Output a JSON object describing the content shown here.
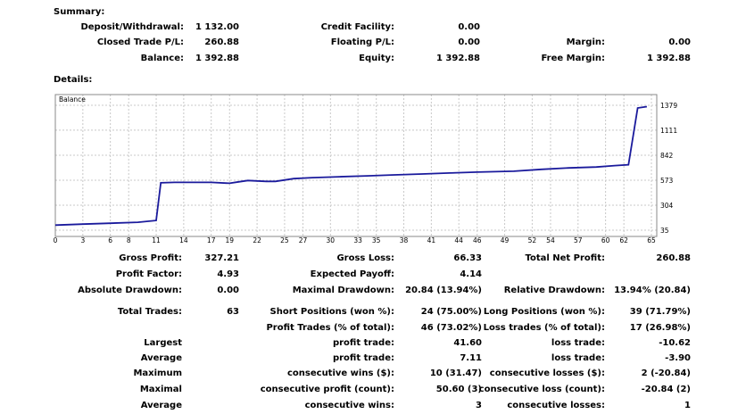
{
  "summary": {
    "title": "Summary:",
    "deposit_label": "Deposit/Withdrawal:",
    "deposit_value": "1 132.00",
    "closed_label": "Closed Trade P/L:",
    "closed_value": "260.88",
    "balance_label": "Balance:",
    "balance_value": "1 392.88",
    "credit_label": "Credit Facility:",
    "credit_value": "0.00",
    "floating_label": "Floating P/L:",
    "floating_value": "0.00",
    "equity_label": "Equity:",
    "equity_value": "1 392.88",
    "margin_label": "Margin:",
    "margin_value": "0.00",
    "free_margin_label": "Free Margin:",
    "free_margin_value": "1 392.88"
  },
  "details": {
    "title": "Details:"
  },
  "chart_data": {
    "type": "line",
    "title": "Balance",
    "xlim": [
      0,
      65
    ],
    "ylim": [
      35,
      1379
    ],
    "x_ticks": [
      "0",
      "3",
      "6",
      "8",
      "11",
      "14",
      "17",
      "19",
      "22",
      "25",
      "27",
      "30",
      "33",
      "35",
      "38",
      "41",
      "44",
      "46",
      "49",
      "52",
      "54",
      "57",
      "60",
      "62",
      "65"
    ],
    "y_ticks": [
      "1379",
      "1111",
      "842",
      "573",
      "304",
      "35"
    ],
    "grid": true,
    "series": [
      {
        "x": [
          0,
          3,
          6,
          9,
          11,
          11.5,
          13,
          17,
          19,
          20,
          21,
          23,
          24,
          26,
          28,
          31,
          34,
          37,
          40,
          43,
          46,
          50,
          53,
          56,
          59,
          61,
          62.5,
          63.5,
          64.5
        ],
        "y": [
          90,
          100,
          110,
          120,
          140,
          545,
          550,
          550,
          540,
          555,
          570,
          560,
          560,
          590,
          600,
          610,
          620,
          630,
          640,
          650,
          660,
          670,
          690,
          705,
          715,
          730,
          740,
          1350,
          1365
        ]
      }
    ]
  },
  "stats": [
    {
      "l1": "Gross Profit:",
      "v1": "327.21",
      "l2": "Gross Loss:",
      "v2": "66.33",
      "l3": "Total Net Profit:",
      "v3": "260.88"
    },
    {
      "l1": "Profit Factor:",
      "v1": "4.93",
      "l2": "Expected Payoff:",
      "v2": "4.14",
      "l3": "",
      "v3": ""
    },
    {
      "l1": "Absolute Drawdown:",
      "v1": "0.00",
      "l2": "Maximal Drawdown:",
      "v2": "20.84 (13.94%)",
      "l3": "Relative Drawdown:",
      "v3": "13.94% (20.84)"
    },
    {
      "l1": "Total Trades:",
      "v1": "63",
      "l2": "Short Positions (won %):",
      "v2": "24 (75.00%)",
      "l3": "Long Positions (won %):",
      "v3": "39 (71.79%)"
    },
    {
      "l1": "",
      "v1": "",
      "l2": "Profit Trades (% of total):",
      "v2": "46 (73.02%)",
      "l3": "Loss trades (% of total):",
      "v3": "17 (26.98%)"
    },
    {
      "l1": "Largest",
      "v1": "",
      "l2": "profit trade:",
      "v2": "41.60",
      "l3": "loss trade:",
      "v3": "-10.62"
    },
    {
      "l1": "Average",
      "v1": "",
      "l2": "profit trade:",
      "v2": "7.11",
      "l3": "loss trade:",
      "v3": "-3.90"
    },
    {
      "l1": "Maximum",
      "v1": "",
      "l2": "consecutive wins ($):",
      "v2": "10 (31.47)",
      "l3": "consecutive losses ($):",
      "v3": "2 (-20.84)"
    },
    {
      "l1": "Maximal",
      "v1": "",
      "l2": "consecutive profit (count):",
      "v2": "50.60 (3)",
      "l3": "consecutive loss (count):",
      "v3": "-20.84 (2)"
    },
    {
      "l1": "Average",
      "v1": "",
      "l2": "consecutive wins:",
      "v2": "3",
      "l3": "consecutive losses:",
      "v3": "1"
    }
  ]
}
